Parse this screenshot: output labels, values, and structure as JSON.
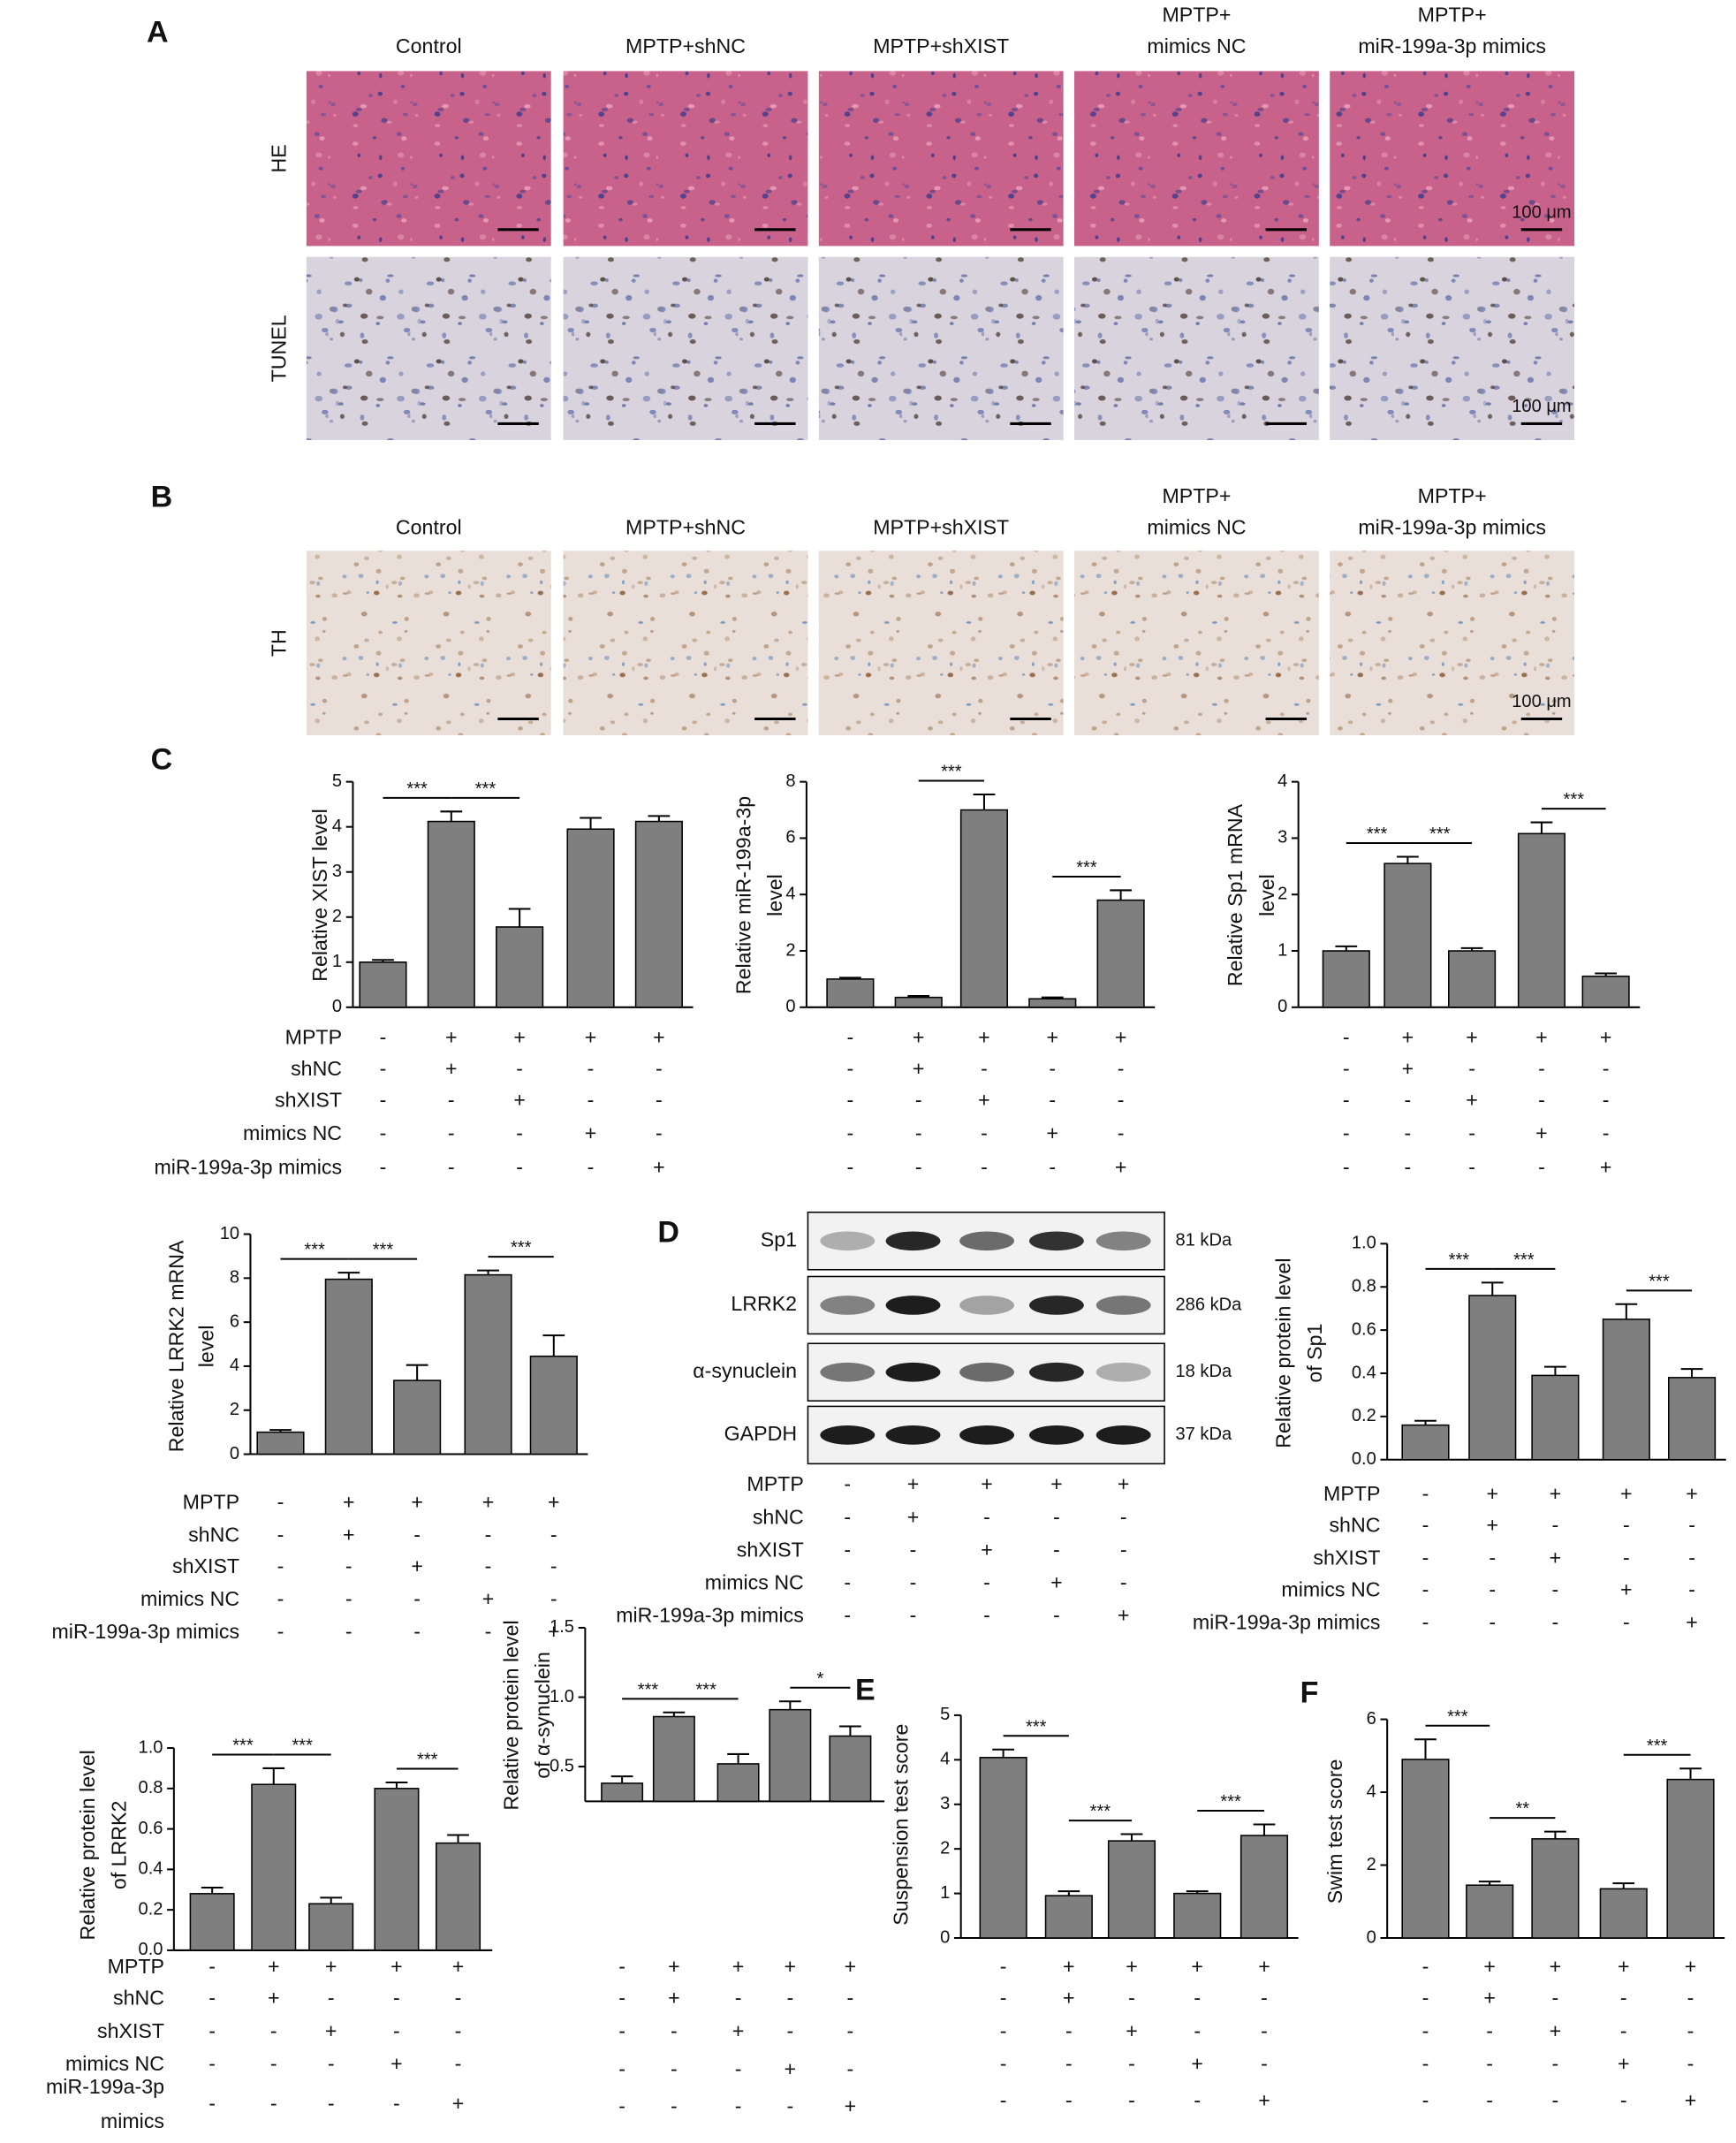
{
  "panel_labels": [
    "A",
    "B",
    "C",
    "D",
    "E",
    "F"
  ],
  "histology": {
    "columns": [
      [
        "Control"
      ],
      [
        "MPTP+shNC"
      ],
      [
        "MPTP+shXIST"
      ],
      [
        "MPTP+",
        "mimics NC"
      ],
      [
        "MPTP+",
        "miR-199a-3p mimics"
      ]
    ],
    "rows": [
      {
        "name": "HE",
        "scale_bar": "100 μm"
      },
      {
        "name": "TUNEL",
        "scale_bar": "100 μm"
      }
    ]
  },
  "th": {
    "columns": [
      [
        "Control"
      ],
      [
        "MPTP+shNC"
      ],
      [
        "MPTP+shXIST"
      ],
      [
        "MPTP+",
        "mimics NC"
      ],
      [
        "MPTP+",
        "miR-199a-3p mimics"
      ]
    ],
    "rows": [
      {
        "name": "TH",
        "scale_bar": "100 μm"
      }
    ]
  },
  "blot": {
    "bands": [
      {
        "name": "Sp1",
        "size": "81 kDa"
      },
      {
        "name": "LRRK2",
        "size": "286 kDa"
      },
      {
        "name": "α-synuclein",
        "size": "18 kDa"
      },
      {
        "name": "GAPDH",
        "size": "37 kDa"
      }
    ],
    "condition_labels": [
      "MPTP",
      "shNC",
      "shXIST",
      "mimics NC",
      "miR-199a-3p mimics"
    ],
    "condition_signs": [
      [
        "-",
        "+",
        "+",
        "+",
        "+"
      ],
      [
        "-",
        "+",
        "-",
        "-",
        "-"
      ],
      [
        "-",
        "-",
        "+",
        "-",
        "-"
      ],
      [
        "-",
        "-",
        "-",
        "+",
        "-"
      ],
      [
        "-",
        "-",
        "-",
        "-",
        "+"
      ]
    ]
  },
  "chart_data": [
    {
      "type": "bar",
      "ylabel": [
        "Relative XIST level"
      ],
      "values": [
        1.0,
        4.12,
        1.78,
        3.95,
        4.12
      ],
      "errors": [
        0.05,
        0.22,
        0.4,
        0.25,
        0.12
      ],
      "color": "#7f7f7f",
      "ylim": [
        0,
        5
      ],
      "yticks": [
        0,
        1,
        2,
        3,
        4,
        5
      ],
      "significance": [
        {
          "bars": [
            0,
            1
          ],
          "label": "***"
        },
        {
          "bars": [
            1,
            2
          ],
          "label": "***"
        }
      ],
      "condition_labels": [
        "MPTP",
        "shNC",
        "shXIST",
        "mimics NC",
        "miR-199a-3p mimics"
      ],
      "condition_signs": [
        [
          "-",
          "+",
          "+",
          "+",
          "+"
        ],
        [
          "-",
          "+",
          "-",
          "-",
          "-"
        ],
        [
          "-",
          "-",
          "+",
          "-",
          "-"
        ],
        [
          "-",
          "-",
          "-",
          "+",
          "-"
        ],
        [
          "-",
          "-",
          "-",
          "-",
          "+"
        ]
      ]
    },
    {
      "type": "bar",
      "ylabel": [
        "Relative miR-199a-3p",
        "level"
      ],
      "values": [
        1.0,
        0.35,
        7.0,
        0.3,
        3.8
      ],
      "errors": [
        0.05,
        0.05,
        0.55,
        0.05,
        0.35
      ],
      "color": "#7f7f7f",
      "ylim": [
        0,
        8
      ],
      "yticks": [
        0,
        2,
        4,
        6,
        8
      ],
      "significance": [
        {
          "bars": [
            1,
            2
          ],
          "label": "***"
        },
        {
          "bars": [
            3,
            4
          ],
          "label": "***"
        }
      ],
      "condition_signs": [
        [
          "-",
          "+",
          "+",
          "+",
          "+"
        ],
        [
          "-",
          "+",
          "-",
          "-",
          "-"
        ],
        [
          "-",
          "-",
          "+",
          "-",
          "-"
        ],
        [
          "-",
          "-",
          "-",
          "+",
          "-"
        ],
        [
          "-",
          "-",
          "-",
          "-",
          "+"
        ]
      ]
    },
    {
      "type": "bar",
      "ylabel": [
        "Relative Sp1 mRNA",
        "level"
      ],
      "values": [
        1.0,
        2.55,
        1.0,
        3.08,
        0.55
      ],
      "errors": [
        0.08,
        0.12,
        0.05,
        0.2,
        0.05
      ],
      "color": "#7f7f7f",
      "ylim": [
        0,
        4
      ],
      "yticks": [
        0,
        1,
        2,
        3,
        4
      ],
      "significance": [
        {
          "bars": [
            0,
            1
          ],
          "label": "***"
        },
        {
          "bars": [
            1,
            2
          ],
          "label": "***"
        },
        {
          "bars": [
            3,
            4
          ],
          "label": "***"
        }
      ],
      "condition_signs": [
        [
          "-",
          "+",
          "+",
          "+",
          "+"
        ],
        [
          "-",
          "+",
          "-",
          "-",
          "-"
        ],
        [
          "-",
          "-",
          "+",
          "-",
          "-"
        ],
        [
          "-",
          "-",
          "-",
          "+",
          "-"
        ],
        [
          "-",
          "-",
          "-",
          "-",
          "+"
        ]
      ]
    },
    {
      "type": "bar",
      "ylabel": [
        "Relative LRRK2 mRNA",
        "level"
      ],
      "values": [
        1.0,
        7.95,
        3.35,
        8.15,
        4.45
      ],
      "errors": [
        0.1,
        0.3,
        0.7,
        0.2,
        0.95
      ],
      "color": "#7f7f7f",
      "ylim": [
        0,
        10
      ],
      "yticks": [
        0,
        2,
        4,
        6,
        8,
        10
      ],
      "significance": [
        {
          "bars": [
            0,
            1
          ],
          "label": "***"
        },
        {
          "bars": [
            1,
            2
          ],
          "label": "***"
        },
        {
          "bars": [
            3,
            4
          ],
          "label": "***"
        }
      ],
      "condition_labels": [
        "MPTP",
        "shNC",
        "shXIST",
        "mimics NC",
        "miR-199a-3p mimics"
      ],
      "condition_signs": [
        [
          "-",
          "+",
          "+",
          "+",
          "+"
        ],
        [
          "-",
          "+",
          "-",
          "-",
          "-"
        ],
        [
          "-",
          "-",
          "+",
          "-",
          "-"
        ],
        [
          "-",
          "-",
          "-",
          "+",
          "-"
        ],
        [
          "-",
          "-",
          "-",
          "-",
          "+"
        ]
      ]
    },
    {
      "type": "bar",
      "ylabel": [
        "Relative protein level",
        "of Sp1"
      ],
      "values": [
        0.16,
        0.76,
        0.39,
        0.65,
        0.38
      ],
      "errors": [
        0.02,
        0.06,
        0.04,
        0.07,
        0.04
      ],
      "color": "#7f7f7f",
      "ylim": [
        0,
        1
      ],
      "yticks": [
        {
          "value": 0,
          "label": "0.0"
        },
        0.2,
        0.4,
        0.6,
        0.8,
        {
          "value": 1,
          "label": "1.0"
        }
      ],
      "significance": [
        {
          "bars": [
            0,
            1
          ],
          "label": "***"
        },
        {
          "bars": [
            1,
            2
          ],
          "label": "***"
        },
        {
          "bars": [
            3,
            4
          ],
          "label": "***"
        }
      ],
      "condition_labels": [
        "MPTP",
        "shNC",
        "shXIST",
        "mimics NC",
        "miR-199a-3p mimics"
      ],
      "condition_signs": [
        [
          "-",
          "+",
          "+",
          "+",
          "+"
        ],
        [
          "-",
          "+",
          "-",
          "-",
          "-"
        ],
        [
          "-",
          "-",
          "+",
          "-",
          "-"
        ],
        [
          "-",
          "-",
          "-",
          "+",
          "-"
        ],
        [
          "-",
          "-",
          "-",
          "-",
          "+"
        ]
      ]
    },
    {
      "type": "bar",
      "ylabel": [
        "Relative protein level",
        "of LRRK2"
      ],
      "values": [
        0.28,
        0.82,
        0.23,
        0.8,
        0.53
      ],
      "errors": [
        0.03,
        0.08,
        0.03,
        0.03,
        0.04
      ],
      "color": "#7f7f7f",
      "ylim": [
        0,
        1
      ],
      "yticks": [
        {
          "value": 0,
          "label": "0.0"
        },
        0.2,
        0.4,
        0.6,
        0.8,
        {
          "value": 1,
          "label": "1.0"
        }
      ],
      "significance": [
        {
          "bars": [
            0,
            1
          ],
          "label": "***"
        },
        {
          "bars": [
            1,
            2
          ],
          "label": "***"
        },
        {
          "bars": [
            3,
            4
          ],
          "label": "***"
        }
      ],
      "condition_labels": [
        "MPTP",
        "shNC",
        "shXIST",
        "mimics NC",
        [
          "miR-199a-3p",
          "mimics"
        ]
      ],
      "condition_signs": [
        [
          "-",
          "+",
          "+",
          "+",
          "+"
        ],
        [
          "-",
          "+",
          "-",
          "-",
          "-"
        ],
        [
          "-",
          "-",
          "+",
          "-",
          "-"
        ],
        [
          "-",
          "-",
          "-",
          "+",
          "-"
        ],
        [
          "-",
          "-",
          "-",
          "-",
          "+"
        ]
      ]
    },
    {
      "type": "bar",
      "ylabel": [
        "Relative protein level",
        "of α-synuclein"
      ],
      "values": [
        0.38,
        0.86,
        0.52,
        0.91,
        0.72
      ],
      "errors": [
        0.05,
        0.03,
        0.07,
        0.06,
        0.07
      ],
      "color": "#7f7f7f",
      "ylim": [
        0.25,
        1.5
      ],
      "yticks": [
        0.5,
        {
          "value": 1,
          "label": "1.0"
        },
        1.5
      ],
      "significance": [
        {
          "bars": [
            0,
            1
          ],
          "label": "***"
        },
        {
          "bars": [
            1,
            2
          ],
          "label": "***"
        },
        {
          "bars": [
            3,
            4
          ],
          "label": "*"
        }
      ],
      "condition_signs": [
        [
          "-",
          "+",
          "+",
          "+",
          "+"
        ],
        [
          "-",
          "+",
          "-",
          "-",
          "-"
        ],
        [
          "-",
          "-",
          "+",
          "-",
          "-"
        ],
        [
          "-",
          "-",
          "-",
          "+",
          "-"
        ],
        [
          "-",
          "-",
          "-",
          "-",
          "+"
        ]
      ]
    },
    {
      "type": "bar",
      "ylabel": [
        "Suspension test score"
      ],
      "values": [
        4.05,
        0.95,
        2.18,
        1.0,
        2.3
      ],
      "errors": [
        0.18,
        0.1,
        0.15,
        0.05,
        0.25
      ],
      "color": "#7f7f7f",
      "ylim": [
        0,
        5
      ],
      "yticks": [
        0,
        1,
        2,
        3,
        4,
        5
      ],
      "significance": [
        {
          "bars": [
            0,
            1
          ],
          "label": "***"
        },
        {
          "bars": [
            1,
            2
          ],
          "label": "***"
        },
        {
          "bars": [
            3,
            4
          ],
          "label": "***"
        }
      ],
      "condition_signs": [
        [
          "-",
          "+",
          "+",
          "+",
          "+"
        ],
        [
          "-",
          "+",
          "-",
          "-",
          "-"
        ],
        [
          "-",
          "-",
          "+",
          "-",
          "-"
        ],
        [
          "-",
          "-",
          "-",
          "+",
          "-"
        ],
        [
          "-",
          "-",
          "-",
          "-",
          "+"
        ]
      ]
    },
    {
      "type": "bar",
      "ylabel": [
        "Swim test score"
      ],
      "values": [
        4.9,
        1.45,
        2.72,
        1.35,
        4.35
      ],
      "errors": [
        0.55,
        0.1,
        0.2,
        0.15,
        0.3
      ],
      "color": "#7f7f7f",
      "ylim": [
        0,
        6
      ],
      "yticks": [
        0,
        2,
        4,
        6
      ],
      "significance": [
        {
          "bars": [
            0,
            1
          ],
          "label": "***"
        },
        {
          "bars": [
            1,
            2
          ],
          "label": "**"
        },
        {
          "bars": [
            3,
            4
          ],
          "label": "***"
        }
      ],
      "condition_signs": [
        [
          "-",
          "+",
          "+",
          "+",
          "+"
        ],
        [
          "-",
          "+",
          "-",
          "-",
          "-"
        ],
        [
          "-",
          "-",
          "+",
          "-",
          "-"
        ],
        [
          "-",
          "-",
          "-",
          "+",
          "-"
        ],
        [
          "-",
          "-",
          "-",
          "-",
          "+"
        ]
      ]
    }
  ]
}
